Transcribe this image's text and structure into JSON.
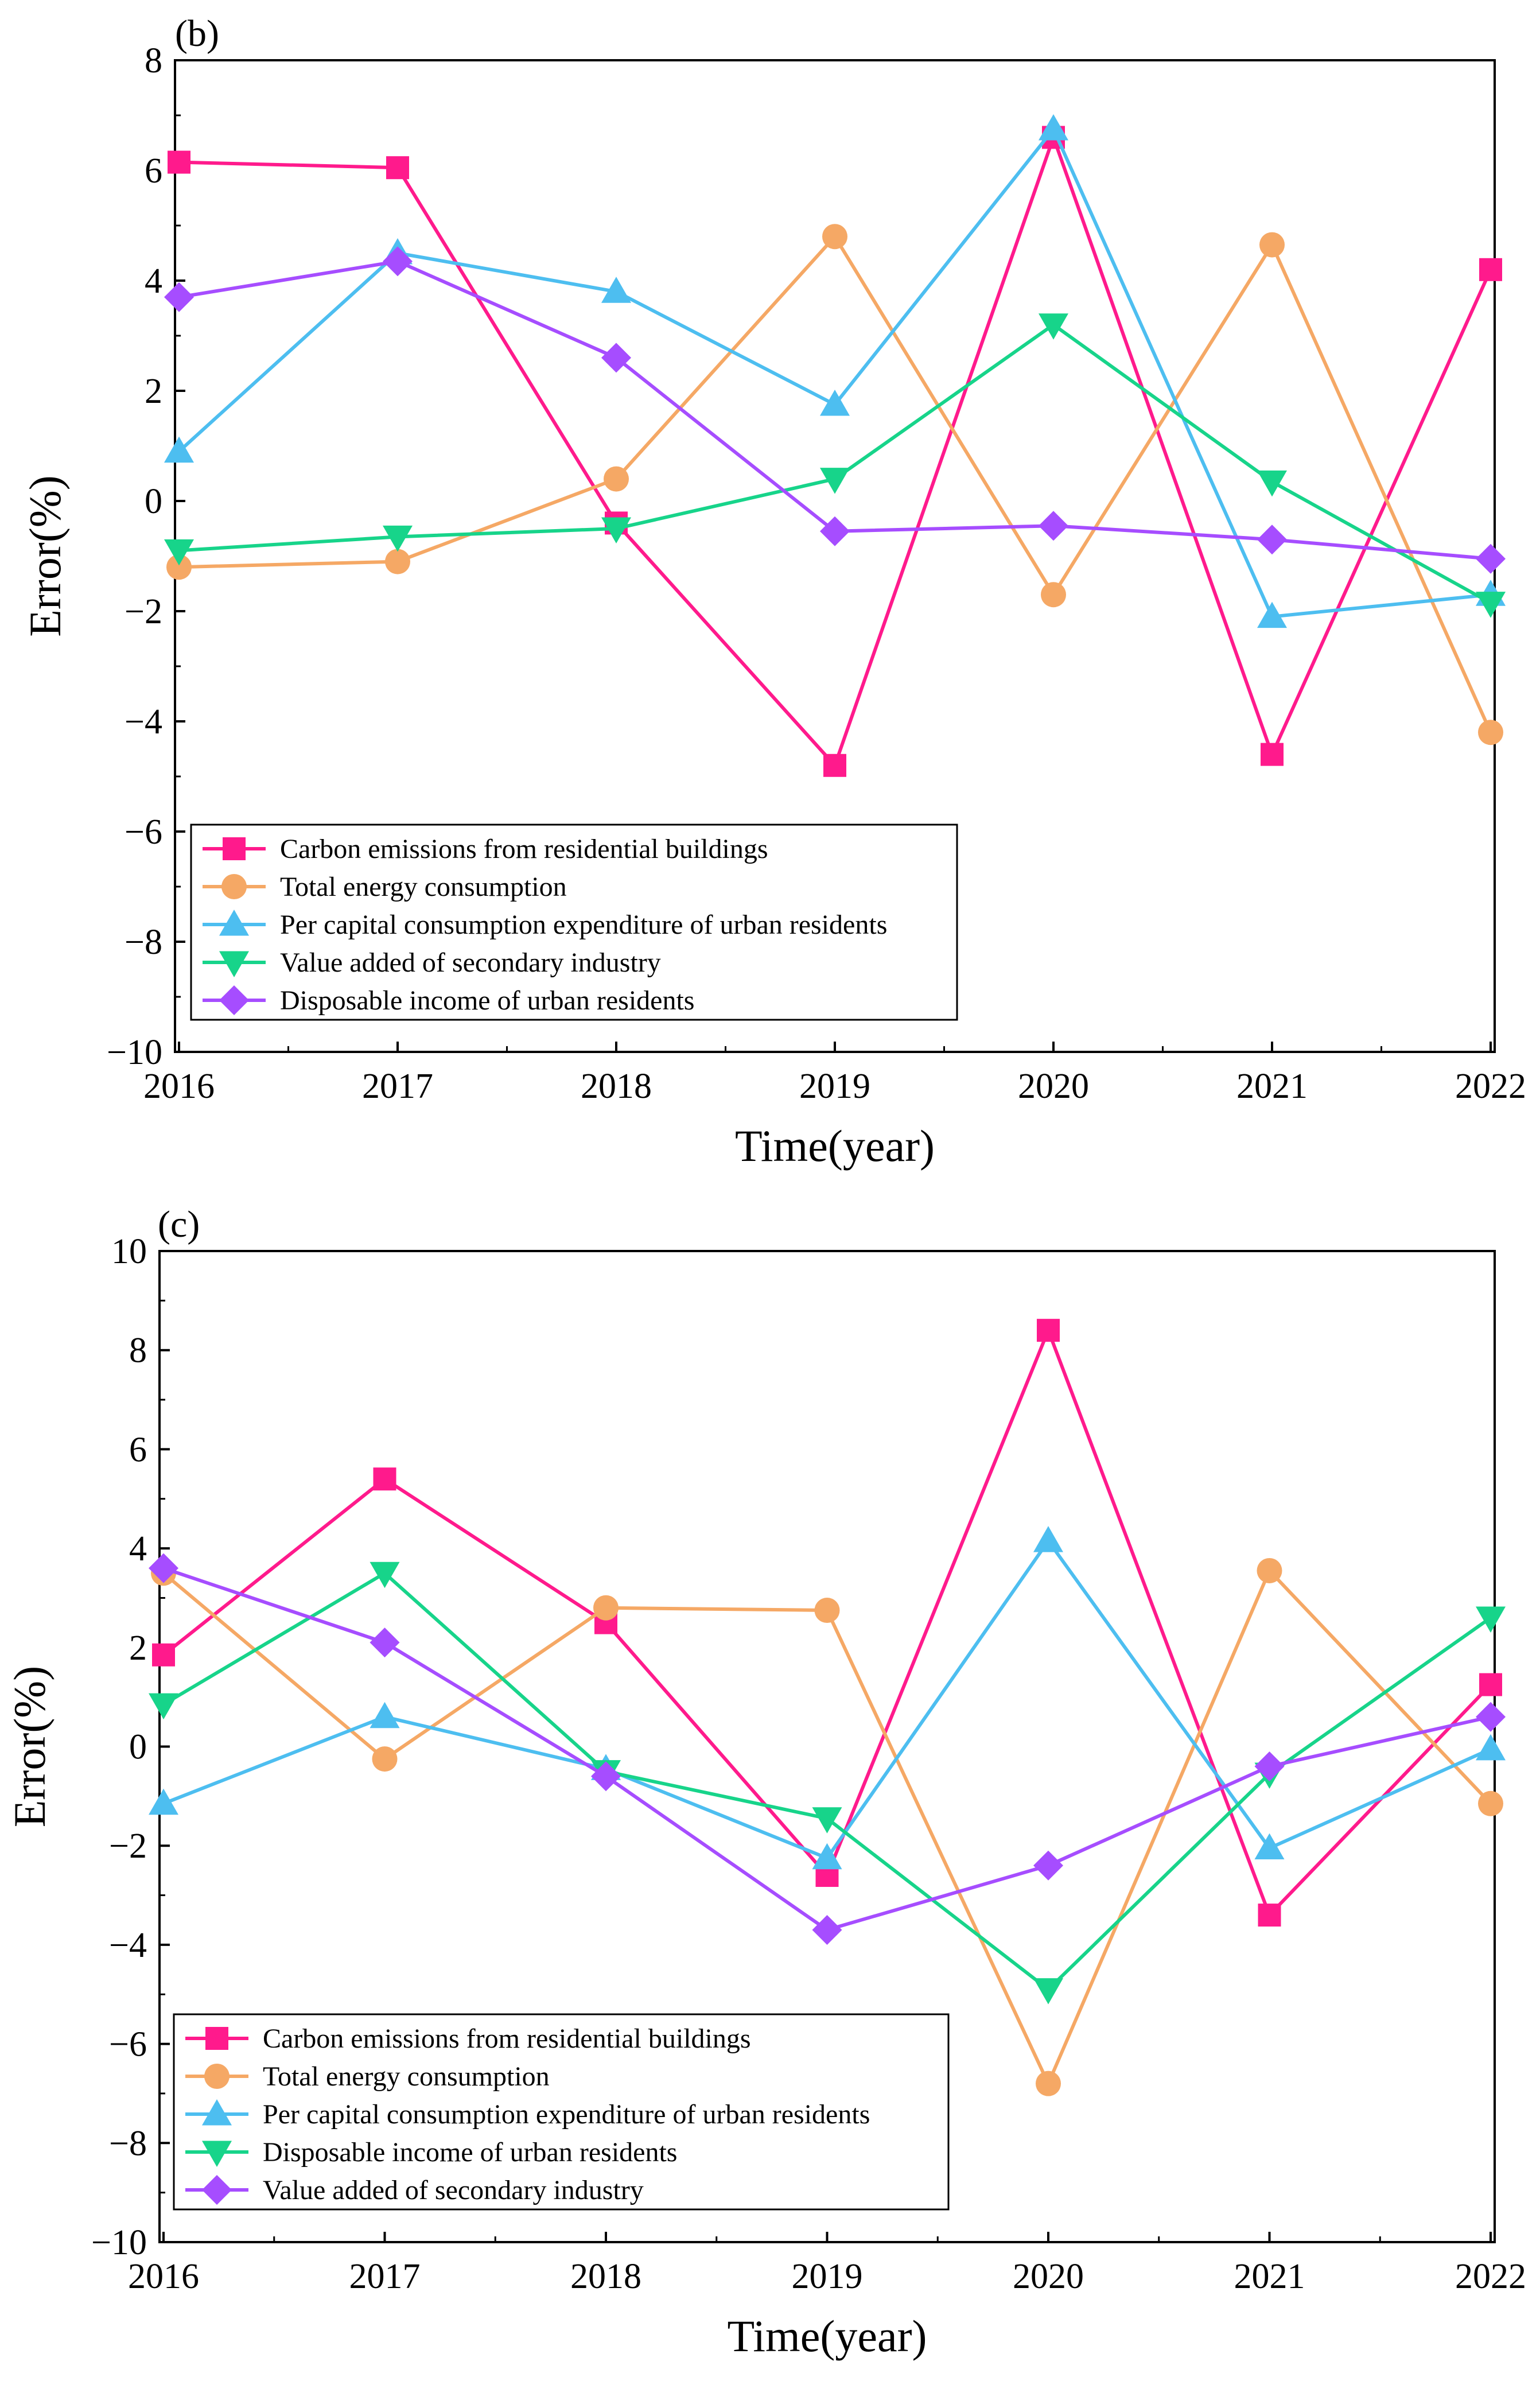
{
  "chart_data": [
    {
      "type": "line",
      "panel_label": "(b)",
      "xlabel": "Time(year)",
      "ylabel": "Error(%)",
      "ylim": [
        -10,
        8
      ],
      "yticks": [
        -10,
        -8,
        -6,
        -4,
        -2,
        0,
        2,
        4,
        6,
        8
      ],
      "ytick_labels": [
        "−10",
        "−8",
        "−6",
        "−4",
        "−2",
        "0",
        "2",
        "4",
        "6",
        "8"
      ],
      "categories": [
        "2016",
        "2017",
        "2018",
        "2019",
        "2020",
        "2021",
        "2022"
      ],
      "legend_position": "bottom-left",
      "series": [
        {
          "name": "Carbon emissions from residential buildings",
          "color": "#ff1a8c",
          "marker": "square",
          "values": [
            6.15,
            6.05,
            -0.4,
            -4.8,
            6.6,
            -4.6,
            4.2
          ]
        },
        {
          "name": "Total energy consumption",
          "color": "#f5a865",
          "marker": "circle",
          "values": [
            -1.2,
            -1.1,
            0.4,
            4.8,
            -1.7,
            4.65,
            -4.2
          ]
        },
        {
          "name": "Per capital consumption expenditure of urban residents",
          "color": "#4dbef0",
          "marker": "triangle-up",
          "values": [
            0.9,
            4.5,
            3.8,
            1.75,
            6.75,
            -2.1,
            -1.7
          ]
        },
        {
          "name": "Value added of secondary industry",
          "color": "#17d48a",
          "marker": "triangle-down",
          "values": [
            -0.9,
            -0.65,
            -0.5,
            0.4,
            3.2,
            0.35,
            -1.85
          ]
        },
        {
          "name": "Disposable income of urban residents",
          "color": "#a64dff",
          "marker": "diamond",
          "values": [
            3.7,
            4.35,
            2.6,
            -0.55,
            -0.45,
            -0.7,
            -1.05
          ]
        }
      ]
    },
    {
      "type": "line",
      "panel_label": "(c)",
      "xlabel": "Time(year)",
      "ylabel": "Error(%)",
      "ylim": [
        -10,
        10
      ],
      "yticks": [
        -10,
        -8,
        -6,
        -4,
        -2,
        0,
        2,
        4,
        6,
        8,
        10
      ],
      "ytick_labels": [
        "−10",
        "−8",
        "−6",
        "−4",
        "−2",
        "0",
        "2",
        "4",
        "6",
        "8",
        "10"
      ],
      "categories": [
        "2016",
        "2017",
        "2018",
        "2019",
        "2020",
        "2021",
        "2022"
      ],
      "legend_position": "bottom-left",
      "series": [
        {
          "name": "Carbon emissions from residential buildings",
          "color": "#ff1a8c",
          "marker": "square",
          "values": [
            1.85,
            5.4,
            2.5,
            -2.6,
            8.4,
            -3.4,
            1.25
          ]
        },
        {
          "name": "Total energy consumption",
          "color": "#f5a865",
          "marker": "circle",
          "values": [
            3.5,
            -0.25,
            2.8,
            2.75,
            -6.8,
            3.55,
            -1.15
          ]
        },
        {
          "name": "Per capital consumption expenditure of urban residents",
          "color": "#4dbef0",
          "marker": "triangle-up",
          "values": [
            -1.15,
            0.6,
            -0.45,
            -2.25,
            4.15,
            -2.05,
            -0.05
          ]
        },
        {
          "name": "Disposable income of urban residents",
          "color": "#17d48a",
          "marker": "triangle-down",
          "values": [
            0.85,
            3.5,
            -0.5,
            -1.45,
            -4.9,
            -0.55,
            2.6
          ]
        },
        {
          "name": "Value added of secondary industry",
          "color": "#a64dff",
          "marker": "diamond",
          "values": [
            3.6,
            2.1,
            -0.6,
            -3.7,
            -2.4,
            -0.4,
            0.6
          ]
        }
      ]
    }
  ]
}
